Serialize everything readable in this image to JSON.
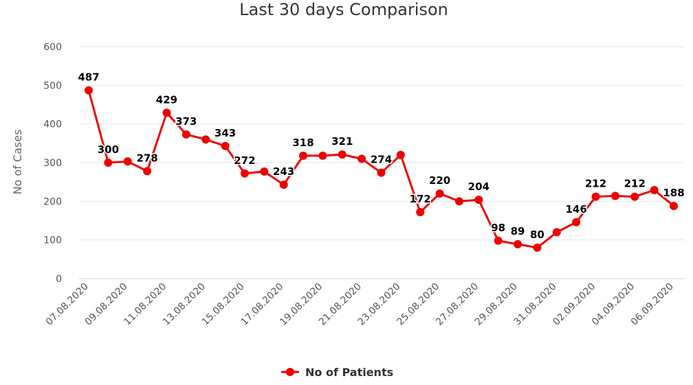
{
  "chart_data": {
    "type": "line",
    "title": "Last 30 days Comparison",
    "xlabel": "",
    "ylabel": "No of Cases",
    "ylim": [
      0,
      600
    ],
    "yticks": [
      0,
      100,
      200,
      300,
      400,
      500,
      600
    ],
    "grid": true,
    "legend_position": "bottom",
    "categories": [
      "07.08.2020",
      "08.08.2020",
      "09.08.2020",
      "10.08.2020",
      "11.08.2020",
      "12.08.2020",
      "13.08.2020",
      "14.08.2020",
      "15.08.2020",
      "16.08.2020",
      "17.08.2020",
      "18.08.2020",
      "19.08.2020",
      "20.08.2020",
      "21.08.2020",
      "22.08.2020",
      "23.08.2020",
      "24.08.2020",
      "25.08.2020",
      "26.08.2020",
      "27.08.2020",
      "28.08.2020",
      "29.08.2020",
      "30.08.2020",
      "31.08.2020",
      "01.09.2020",
      "02.09.2020",
      "03.09.2020",
      "04.09.2020",
      "05.09.2020",
      "06.09.2020"
    ],
    "x_tick_labels": [
      "07.08.2020",
      "09.08.2020",
      "11.08.2020",
      "13.08.2020",
      "15.08.2020",
      "17.08.2020",
      "19.08.2020",
      "21.08.2020",
      "23.08.2020",
      "25.08.2020",
      "27.08.2020",
      "29.08.2020",
      "31.08.2020",
      "02.09.2020",
      "04.09.2020",
      "06.09.2020"
    ],
    "series": [
      {
        "name": "No of Patients",
        "color": "#ee0000",
        "values": [
          487,
          300,
          303,
          278,
          429,
          373,
          360,
          343,
          272,
          277,
          243,
          318,
          318,
          321,
          310,
          274,
          320,
          172,
          220,
          200,
          204,
          98,
          89,
          80,
          120,
          146,
          212,
          214,
          212,
          229,
          188
        ],
        "labels": [
          "487",
          "300",
          "",
          "278",
          "429",
          "373",
          "",
          "343",
          "272",
          "",
          "243",
          "318",
          "",
          "321",
          "",
          "274",
          "",
          "172",
          "220",
          "",
          "204",
          "98",
          "89",
          "80",
          "",
          "146",
          "212",
          "",
          "212",
          "",
          "188"
        ]
      }
    ]
  }
}
